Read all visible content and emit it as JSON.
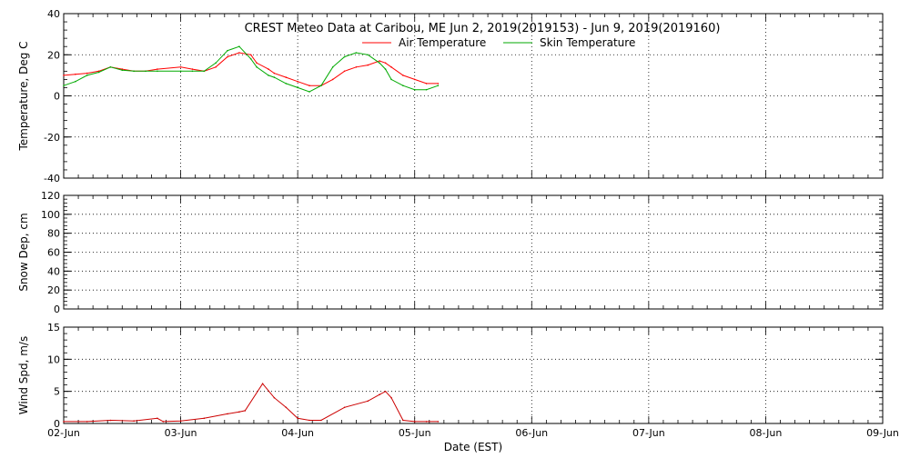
{
  "chart_data": {
    "type": "line",
    "title": "CREST Meteo Data at Caribou, ME   Jun  2, 2019(2019153) - Jun  9, 2019(2019160)",
    "xlabel": "Date (EST)",
    "x_ticks": [
      "02-Jun",
      "03-Jun",
      "04-Jun",
      "05-Jun",
      "06-Jun",
      "07-Jun",
      "08-Jun",
      "09-Jun"
    ],
    "x_range_days": [
      0,
      7
    ],
    "grid": true,
    "legend_position": "top",
    "panels": [
      {
        "ylabel": "Temperature, Deg C",
        "ylim": [
          -40,
          40
        ],
        "y_ticks": [
          "40",
          "20",
          "0",
          "-20",
          "-40"
        ],
        "series": [
          {
            "name": "Air Temperature",
            "color": "#ff0000",
            "x_days": [
              0.0,
              0.1,
              0.2,
              0.3,
              0.4,
              0.5,
              0.6,
              0.7,
              0.8,
              1.0,
              1.1,
              1.2,
              1.3,
              1.4,
              1.5,
              1.6,
              1.65,
              1.75,
              1.8,
              1.9,
              2.0,
              2.1,
              2.2,
              2.3,
              2.4,
              2.5,
              2.6,
              2.7,
              2.75,
              2.8,
              2.9,
              3.0,
              3.1,
              3.2
            ],
            "values": [
              10,
              10.5,
              11,
              12,
              14,
              13,
              12,
              12,
              13,
              14,
              13,
              12,
              14,
              19,
              21,
              20,
              16,
              13,
              11,
              9,
              7,
              5,
              5,
              8,
              12,
              14,
              15,
              17,
              16,
              14,
              10,
              8,
              6,
              6
            ]
          },
          {
            "name": "Skin Temperature",
            "color": "#00aa00",
            "x_days": [
              0.0,
              0.1,
              0.2,
              0.3,
              0.4,
              0.5,
              0.6,
              0.7,
              0.8,
              1.0,
              1.1,
              1.2,
              1.3,
              1.4,
              1.5,
              1.6,
              1.65,
              1.75,
              1.8,
              1.9,
              2.0,
              2.1,
              2.2,
              2.3,
              2.4,
              2.5,
              2.6,
              2.7,
              2.75,
              2.8,
              2.9,
              3.0,
              3.1,
              3.2
            ],
            "values": [
              5,
              7,
              10,
              11.5,
              14,
              12.5,
              12,
              12,
              12,
              12,
              12,
              12,
              16,
              22,
              24,
              18,
              14,
              10,
              9,
              6,
              4,
              2,
              5,
              14,
              19,
              21,
              20,
              16,
              13,
              8,
              5,
              3,
              3,
              5
            ]
          }
        ]
      },
      {
        "ylabel": "Snow Dep, cm",
        "ylim": [
          0,
          120
        ],
        "y_ticks": [
          "120",
          "100",
          "80",
          "60",
          "40",
          "20",
          "0"
        ],
        "series": []
      },
      {
        "ylabel": "Wind Spd, m/s",
        "ylim": [
          0,
          15
        ],
        "y_ticks": [
          "15",
          "10",
          "5",
          "0"
        ],
        "series": [
          {
            "name": "Wind Speed",
            "color": "#cc0000",
            "x_days": [
              0.0,
              0.2,
              0.4,
              0.6,
              0.8,
              0.85,
              1.0,
              1.2,
              1.4,
              1.5,
              1.55,
              1.7,
              1.8,
              1.9,
              2.0,
              2.1,
              2.2,
              2.4,
              2.6,
              2.7,
              2.75,
              2.8,
              2.9,
              3.0,
              3.1,
              3.2
            ],
            "values": [
              0.3,
              0.3,
              0.5,
              0.4,
              0.8,
              0.3,
              0.4,
              0.8,
              1.5,
              1.8,
              2.0,
              6.2,
              4.0,
              2.5,
              0.8,
              0.5,
              0.5,
              2.5,
              3.5,
              4.5,
              5.0,
              4.0,
              0.5,
              0.3,
              0.3,
              0.3
            ]
          }
        ]
      }
    ]
  }
}
